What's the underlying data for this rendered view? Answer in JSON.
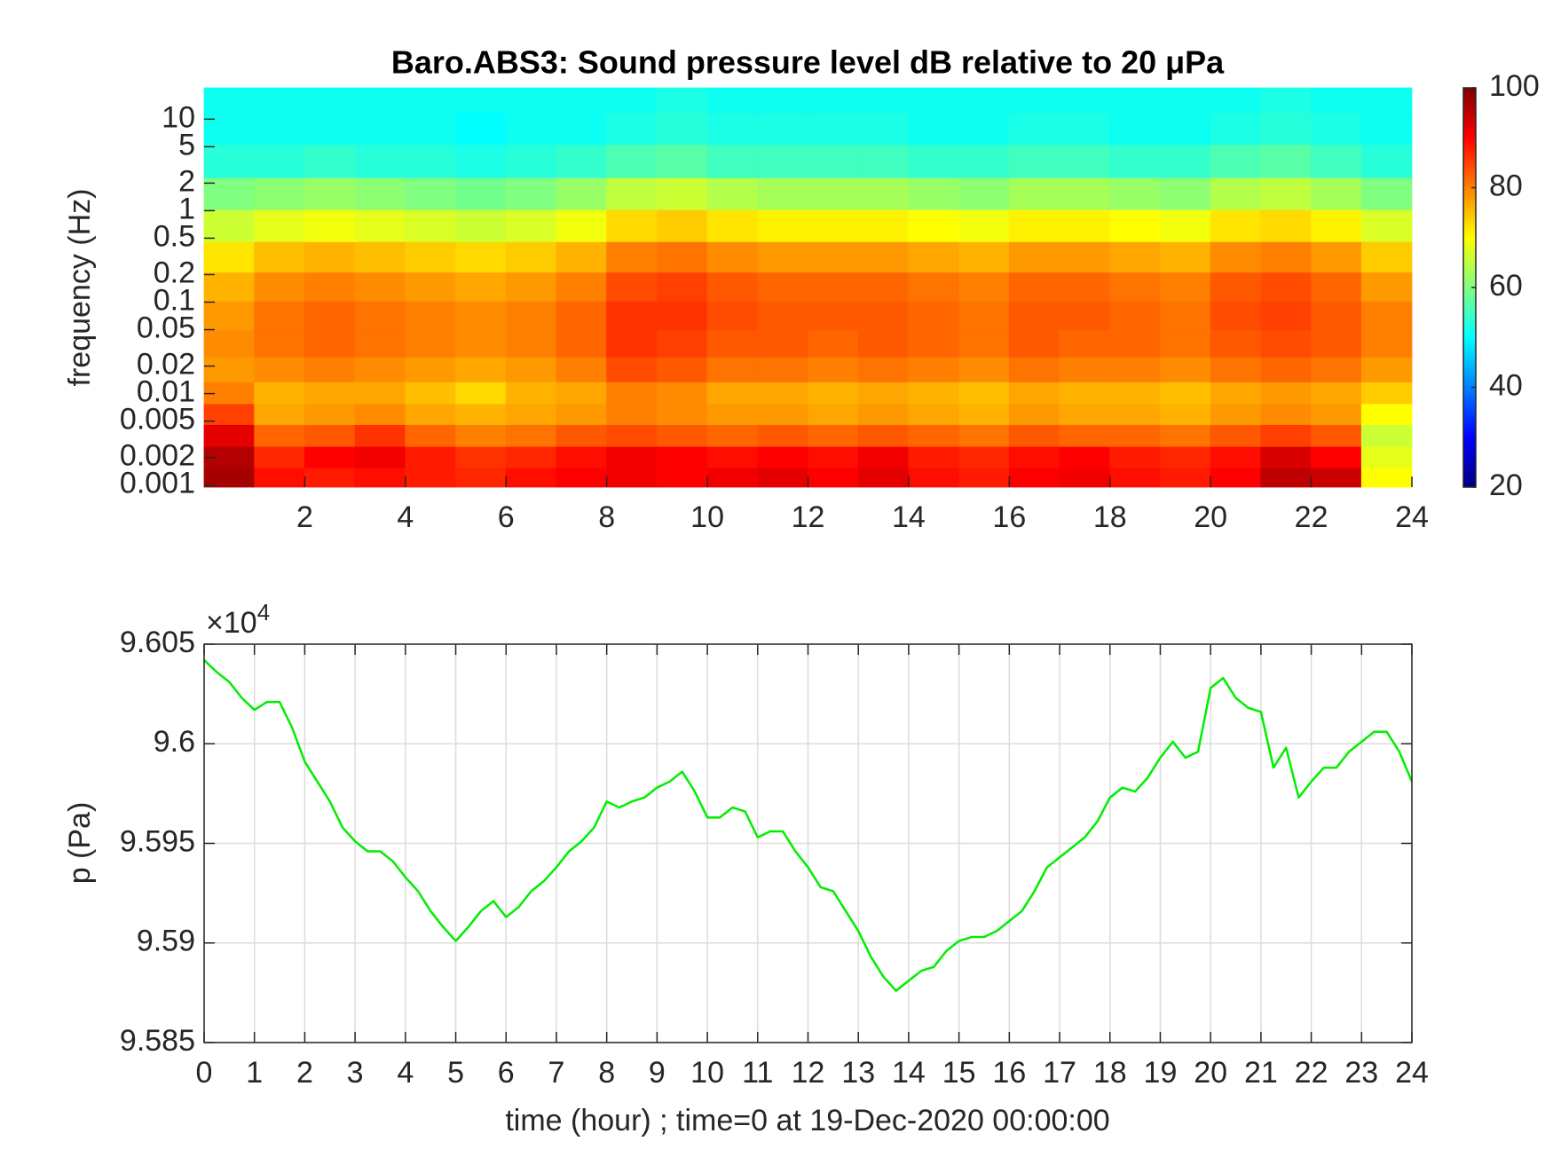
{
  "chart_data": [
    {
      "type": "heatmap",
      "title": "Baro.ABS3: Sound pressure level dB relative to 20 μPa",
      "y_label": "frequency (Hz)",
      "colormap": "jet",
      "clim": [
        20,
        100
      ],
      "cticks": [
        20,
        40,
        60,
        80,
        100
      ],
      "yscale": "log",
      "xlim": [
        0,
        24
      ],
      "ylim": [
        0.00095,
        22
      ],
      "xticks": [
        2,
        4,
        6,
        8,
        10,
        12,
        14,
        16,
        18,
        20,
        22,
        24
      ],
      "yticks": [
        0.001,
        0.002,
        0.005,
        0.01,
        0.02,
        0.05,
        0.1,
        0.2,
        0.5,
        1,
        2,
        5,
        10
      ],
      "x": [
        0.5,
        1.5,
        2.5,
        3.5,
        4.5,
        5.5,
        6.5,
        7.5,
        8.5,
        9.5,
        10.5,
        11.5,
        12.5,
        13.5,
        14.5,
        15.5,
        16.5,
        17.5,
        18.5,
        19.5,
        20.5,
        21.5,
        22.5,
        23.5
      ],
      "y": [
        0.0012,
        0.002,
        0.0035,
        0.006,
        0.01,
        0.018,
        0.035,
        0.07,
        0.15,
        0.3,
        0.7,
        1.5,
        3.5,
        8,
        17
      ],
      "z": [
        [
          97,
          89,
          88,
          89,
          88,
          87,
          89,
          90,
          91,
          90,
          91,
          92,
          90,
          92,
          89,
          88,
          90,
          91,
          89,
          88,
          90,
          95,
          94,
          70
        ],
        [
          96,
          87,
          90,
          91,
          88,
          86,
          87,
          89,
          91,
          90,
          89,
          90,
          89,
          91,
          88,
          87,
          89,
          90,
          88,
          87,
          89,
          93,
          90,
          68
        ],
        [
          92,
          82,
          83,
          86,
          82,
          80,
          81,
          83,
          84,
          83,
          82,
          83,
          82,
          83,
          82,
          81,
          83,
          82,
          82,
          81,
          83,
          85,
          83,
          66
        ],
        [
          85,
          77,
          78,
          79,
          77,
          76,
          77,
          78,
          80,
          79,
          78,
          78,
          77,
          78,
          77,
          76,
          78,
          77,
          77,
          76,
          78,
          79,
          78,
          70
        ],
        [
          80,
          76,
          77,
          77,
          75,
          73,
          76,
          77,
          80,
          79,
          77,
          77,
          76,
          77,
          76,
          75,
          77,
          76,
          76,
          75,
          77,
          78,
          77,
          74
        ],
        [
          78,
          79,
          80,
          79,
          78,
          77,
          78,
          80,
          84,
          83,
          81,
          81,
          80,
          81,
          80,
          79,
          81,
          80,
          80,
          79,
          81,
          82,
          81,
          78
        ],
        [
          79,
          81,
          82,
          81,
          80,
          79,
          80,
          82,
          86,
          85,
          83,
          83,
          82,
          83,
          82,
          81,
          83,
          82,
          82,
          81,
          83,
          84,
          83,
          80
        ],
        [
          78,
          81,
          82,
          81,
          80,
          79,
          80,
          82,
          86,
          86,
          84,
          83,
          83,
          83,
          82,
          81,
          83,
          83,
          82,
          81,
          84,
          85,
          83,
          80
        ],
        [
          76,
          79,
          80,
          79,
          78,
          77,
          78,
          80,
          84,
          85,
          83,
          82,
          82,
          82,
          81,
          80,
          82,
          82,
          81,
          80,
          83,
          84,
          82,
          78
        ],
        [
          72,
          75,
          76,
          75,
          74,
          73,
          74,
          76,
          80,
          81,
          79,
          78,
          78,
          78,
          77,
          76,
          78,
          78,
          77,
          76,
          79,
          80,
          78,
          74
        ],
        [
          66,
          68,
          69,
          68,
          67,
          66,
          67,
          69,
          73,
          74,
          72,
          71,
          71,
          71,
          70,
          69,
          71,
          71,
          70,
          69,
          72,
          73,
          71,
          67
        ],
        [
          60,
          61,
          62,
          61,
          60,
          59,
          60,
          62,
          65,
          66,
          64,
          63,
          63,
          63,
          62,
          61,
          63,
          63,
          62,
          61,
          64,
          65,
          63,
          60
        ],
        [
          53,
          53,
          54,
          53,
          53,
          52,
          53,
          54,
          56,
          57,
          55,
          55,
          55,
          55,
          54,
          54,
          55,
          55,
          54,
          54,
          56,
          57,
          55,
          53
        ],
        [
          51,
          51,
          51,
          51,
          51,
          50,
          51,
          51,
          52,
          53,
          52,
          52,
          52,
          52,
          51,
          51,
          52,
          52,
          51,
          51,
          52,
          53,
          52,
          51
        ],
        [
          51,
          51,
          51,
          51,
          51,
          51,
          51,
          51,
          51,
          52,
          51,
          51,
          51,
          51,
          51,
          51,
          51,
          51,
          51,
          51,
          51,
          52,
          51,
          51
        ]
      ]
    },
    {
      "type": "line",
      "x_label": "time (hour) ; time=0 at 19-Dec-2020 00:00:00",
      "y_label": "p (Pa)",
      "y_exponent": {
        "base": "×10",
        "power": "4"
      },
      "grid": true,
      "xlim": [
        0,
        24
      ],
      "ylim": [
        95850,
        96050
      ],
      "xticks": [
        0,
        1,
        2,
        3,
        4,
        5,
        6,
        7,
        8,
        9,
        10,
        11,
        12,
        13,
        14,
        15,
        16,
        17,
        18,
        19,
        20,
        21,
        22,
        23,
        24
      ],
      "yticks": [
        {
          "value": 95850,
          "label": "9.585"
        },
        {
          "value": 95900,
          "label": "9.59"
        },
        {
          "value": 95950,
          "label": "9.595"
        },
        {
          "value": 96000,
          "label": "9.6"
        },
        {
          "value": 96050,
          "label": "9.605"
        }
      ],
      "series": [
        {
          "color": "#00ee00",
          "x": [
            0,
            0.25,
            0.5,
            0.75,
            1,
            1.25,
            1.5,
            1.75,
            2,
            2.25,
            2.5,
            2.75,
            3,
            3.25,
            3.5,
            3.75,
            4,
            4.25,
            4.5,
            4.75,
            5,
            5.25,
            5.5,
            5.75,
            6,
            6.25,
            6.5,
            6.75,
            7,
            7.25,
            7.5,
            7.75,
            8,
            8.25,
            8.5,
            8.75,
            9,
            9.25,
            9.5,
            9.75,
            10,
            10.25,
            10.5,
            10.75,
            11,
            11.25,
            11.5,
            11.75,
            12,
            12.25,
            12.5,
            12.75,
            13,
            13.25,
            13.5,
            13.75,
            14,
            14.25,
            14.5,
            14.75,
            15,
            15.25,
            15.5,
            15.75,
            16,
            16.25,
            16.5,
            16.75,
            17,
            17.25,
            17.5,
            17.75,
            18,
            18.25,
            18.5,
            18.75,
            19,
            19.25,
            19.5,
            19.75,
            20,
            20.25,
            20.5,
            20.75,
            21,
            21.25,
            21.5,
            21.75,
            22,
            22.25,
            22.5,
            22.75,
            23,
            23.25,
            23.5,
            23.75,
            24
          ],
          "values": [
            96042,
            96036,
            96031,
            96023,
            96017,
            96021,
            96021,
            96008,
            95991,
            95981,
            95971,
            95958,
            95951,
            95946,
            95946,
            95941,
            95933,
            95926,
            95916,
            95908,
            95901,
            95908,
            95916,
            95921,
            95913,
            95918,
            95926,
            95931,
            95938,
            95946,
            95951,
            95958,
            95971,
            95968,
            95971,
            95973,
            95978,
            95981,
            95986,
            95976,
            95963,
            95963,
            95968,
            95966,
            95953,
            95956,
            95956,
            95946,
            95938,
            95928,
            95926,
            95916,
            95906,
            95893,
            95883,
            95876,
            95881,
            95886,
            95888,
            95896,
            95901,
            95903,
            95903,
            95906,
            95911,
            95916,
            95926,
            95938,
            95943,
            95948,
            95953,
            95961,
            95973,
            95978,
            95976,
            95983,
            95993,
            96001,
            95993,
            95996,
            96028,
            96033,
            96023,
            96018,
            96016,
            95988,
            95998,
            95973,
            95981,
            95988,
            95988,
            95996,
            96001,
            96006,
            96006,
            95996,
            95981
          ]
        }
      ]
    }
  ]
}
